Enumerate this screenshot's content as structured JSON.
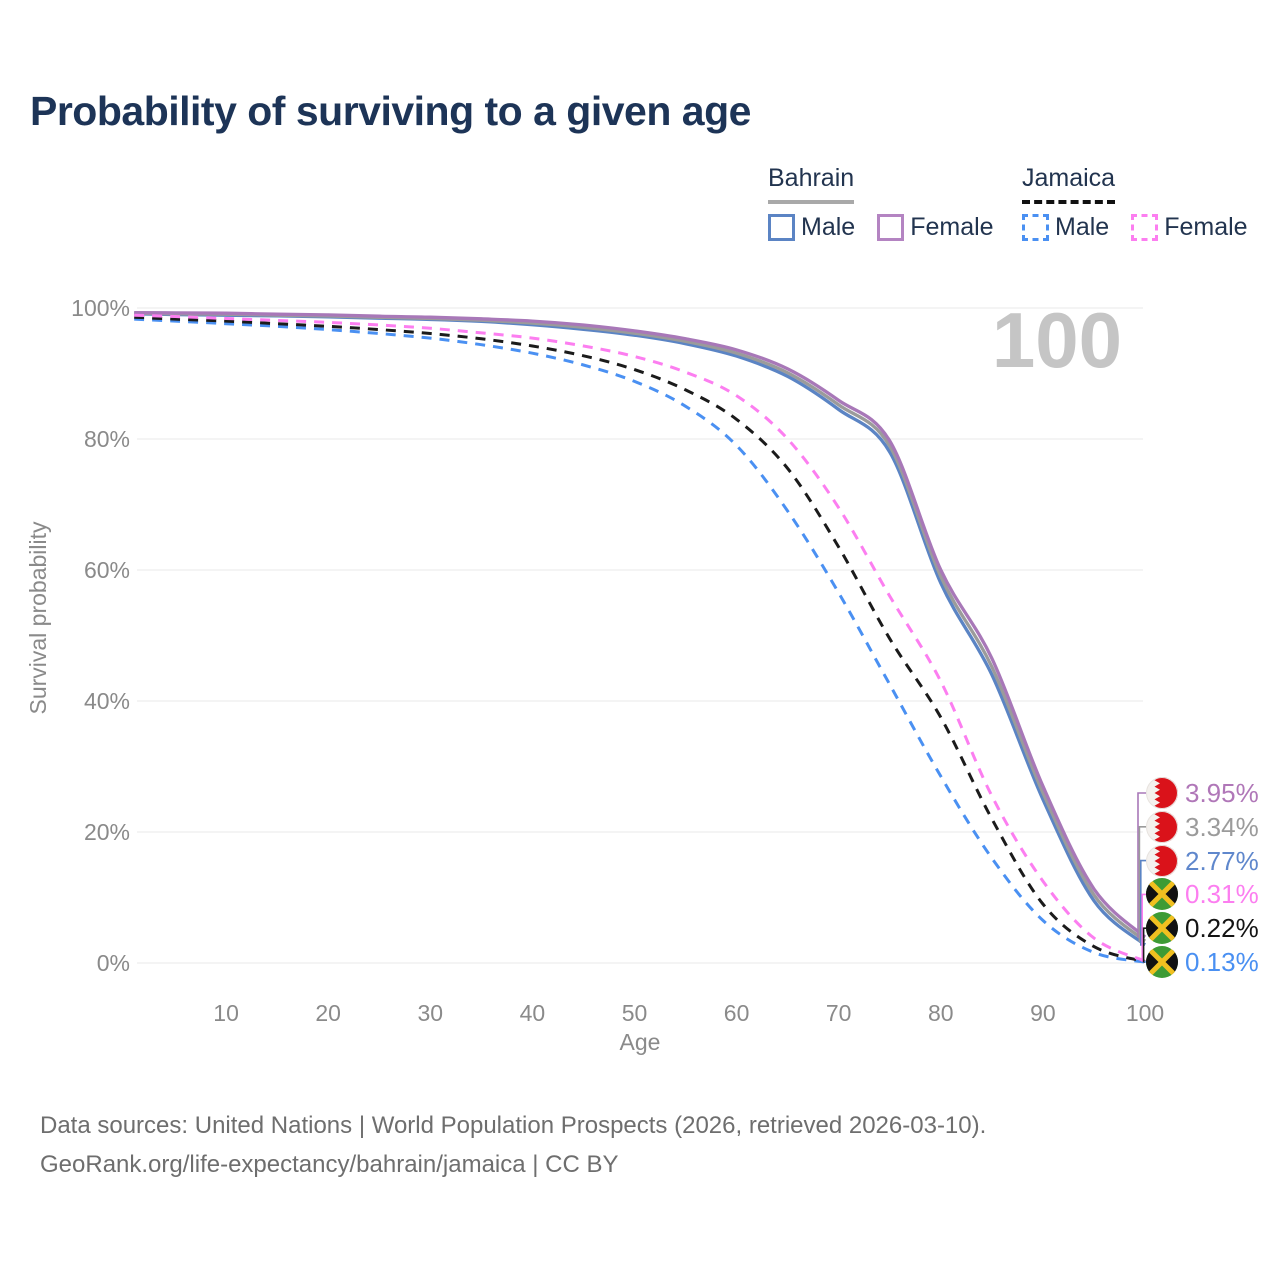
{
  "title": "Probability of surviving to a given age",
  "watermark": "100",
  "legend": {
    "groups": [
      {
        "country": "Bahrain",
        "underline_color": "#a9a9a9",
        "underline_dash": false,
        "items": [
          {
            "label": "Male",
            "color": "#5b84c4",
            "dash": false
          },
          {
            "label": "Female",
            "color": "#b484c2",
            "dash": false
          }
        ]
      },
      {
        "country": "Jamaica",
        "underline_color": "#111111",
        "underline_dash": true,
        "items": [
          {
            "label": "Male",
            "color": "#4a90f2",
            "dash": true
          },
          {
            "label": "Female",
            "color": "#fc7ef0",
            "dash": true
          }
        ]
      }
    ]
  },
  "chart_data": {
    "type": "line",
    "title": "Probability of surviving to a given age",
    "xlabel": "Age",
    "ylabel": "Survival probability",
    "xlim": [
      1,
      100
    ],
    "ylim": [
      0,
      100
    ],
    "grid": "horizontal",
    "x_ticks": [
      10,
      20,
      30,
      40,
      50,
      60,
      70,
      80,
      90,
      100
    ],
    "y_tick_values": [
      0,
      20,
      40,
      60,
      80,
      100
    ],
    "y_tick_labels": [
      "0%",
      "20%",
      "40%",
      "60%",
      "80%",
      "100%"
    ],
    "ages": [
      1,
      5,
      10,
      15,
      20,
      25,
      30,
      35,
      40,
      45,
      50,
      55,
      60,
      65,
      70,
      75,
      80,
      85,
      90,
      95,
      100
    ],
    "series": [
      {
        "id": "bahrain-male",
        "name": "Bahrain Male",
        "country": "Bahrain",
        "sex": "Male",
        "color": "#5b84c4",
        "dash": false,
        "values": [
          99.1,
          99.0,
          98.9,
          98.8,
          98.65,
          98.45,
          98.25,
          97.95,
          97.45,
          96.75,
          95.85,
          94.55,
          92.65,
          89.55,
          84.5,
          78.0,
          58.0,
          44.0,
          25.0,
          9.5,
          2.77
        ]
      },
      {
        "id": "bahrain-total",
        "name": "Bahrain",
        "country": "Bahrain",
        "sex": "Both",
        "color": "#9b9b9b",
        "dash": false,
        "values": [
          99.2,
          99.1,
          99.05,
          98.9,
          98.78,
          98.58,
          98.4,
          98.13,
          97.7,
          97.05,
          96.15,
          94.9,
          93.1,
          90.1,
          85.2,
          78.9,
          59.0,
          45.2,
          26.0,
          10.4,
          3.34
        ]
      },
      {
        "id": "bahrain-female",
        "name": "Bahrain Female",
        "country": "Bahrain",
        "sex": "Female",
        "color": "#a878b8",
        "dash": false,
        "values": [
          99.3,
          99.25,
          99.2,
          99.05,
          98.95,
          98.75,
          98.6,
          98.35,
          98.0,
          97.4,
          96.5,
          95.3,
          93.6,
          90.7,
          85.9,
          79.7,
          60.0,
          46.5,
          27.0,
          11.3,
          3.95
        ]
      },
      {
        "id": "jamaica-male",
        "name": "Jamaica Male",
        "country": "Jamaica",
        "sex": "Male",
        "color": "#4a90f2",
        "dash": true,
        "values": [
          98.3,
          98.0,
          97.6,
          97.2,
          96.7,
          96.1,
          95.4,
          94.4,
          93.1,
          91.3,
          88.8,
          85.0,
          79.0,
          69.0,
          56.5,
          42.5,
          28.5,
          16.0,
          6.5,
          1.6,
          0.13
        ]
      },
      {
        "id": "jamaica-total",
        "name": "Jamaica",
        "country": "Jamaica",
        "sex": "Both",
        "color": "#1b1b1b",
        "dash": true,
        "values": [
          98.6,
          98.3,
          98.0,
          97.6,
          97.2,
          96.7,
          96.1,
          95.3,
          94.2,
          92.7,
          90.6,
          87.5,
          83.0,
          75.5,
          63.5,
          49.5,
          37.5,
          22.0,
          9.0,
          2.5,
          0.22
        ]
      },
      {
        "id": "jamaica-female",
        "name": "Jamaica Female",
        "country": "Jamaica",
        "sex": "Female",
        "color": "#fc7ef0",
        "dash": true,
        "values": [
          98.9,
          98.7,
          98.4,
          98.1,
          97.8,
          97.4,
          96.9,
          96.2,
          95.4,
          94.2,
          92.6,
          90.2,
          86.6,
          80.0,
          69.5,
          56.0,
          43.0,
          25.5,
          12.5,
          3.8,
          0.31
        ]
      }
    ],
    "end_labels": [
      {
        "text": "3.95%",
        "value": 3.95,
        "series": "bahrain-female",
        "flag": "bahrain",
        "color": "#b077b8"
      },
      {
        "text": "3.34%",
        "value": 3.34,
        "series": "bahrain-total",
        "flag": "bahrain",
        "color": "#9b9b9b"
      },
      {
        "text": "2.77%",
        "value": 2.77,
        "series": "bahrain-male",
        "flag": "bahrain",
        "color": "#5f87cc"
      },
      {
        "text": "0.31%",
        "value": 0.31,
        "series": "jamaica-female",
        "flag": "jamaica",
        "color": "#fc7ef0"
      },
      {
        "text": "0.22%",
        "value": 0.22,
        "series": "jamaica-total",
        "flag": "jamaica",
        "color": "#141414"
      },
      {
        "text": "0.13%",
        "value": 0.13,
        "series": "jamaica-male",
        "flag": "jamaica",
        "color": "#4a90f2"
      }
    ]
  },
  "footer": {
    "line1": "Data sources: United Nations | World Population Prospects (2026, retrieved 2026-03-10).",
    "line2": "GeoRank.org/life-expectancy/bahrain/jamaica | CC BY"
  }
}
